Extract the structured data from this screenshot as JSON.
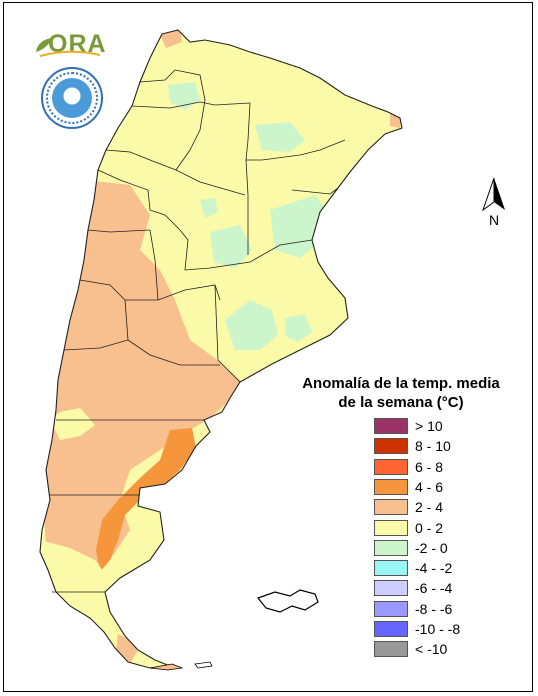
{
  "legend": {
    "title_line1": "Anomalía de la temp. media",
    "title_line2": "de la semana (°C)",
    "items": [
      {
        "label": "> 10",
        "color": "#993366"
      },
      {
        "label": "8 - 10",
        "color": "#cc3300"
      },
      {
        "label": "6 - 8",
        "color": "#ff6633"
      },
      {
        "label": "4 - 6",
        "color": "#f5963c"
      },
      {
        "label": "2 - 4",
        "color": "#f7c08e"
      },
      {
        "label": "0 - 2",
        "color": "#fbfaa8"
      },
      {
        "label": "-2 - 0",
        "color": "#ccf5cc"
      },
      {
        "label": "-4 - -2",
        "color": "#99f5f5"
      },
      {
        "label": "-6 - -4",
        "color": "#ccccff"
      },
      {
        "label": "-8 - -6",
        "color": "#9999ff"
      },
      {
        "label": "-10 - -8",
        "color": "#6666ff"
      },
      {
        "label": "< -10",
        "color": "#999999"
      }
    ]
  },
  "north_arrow": {
    "label": "N",
    "icon": "north-arrow-icon"
  },
  "logos": {
    "ora_text": "ORA",
    "smn_icon": "smn-seal-icon"
  },
  "map": {
    "region": "Argentina"
  }
}
